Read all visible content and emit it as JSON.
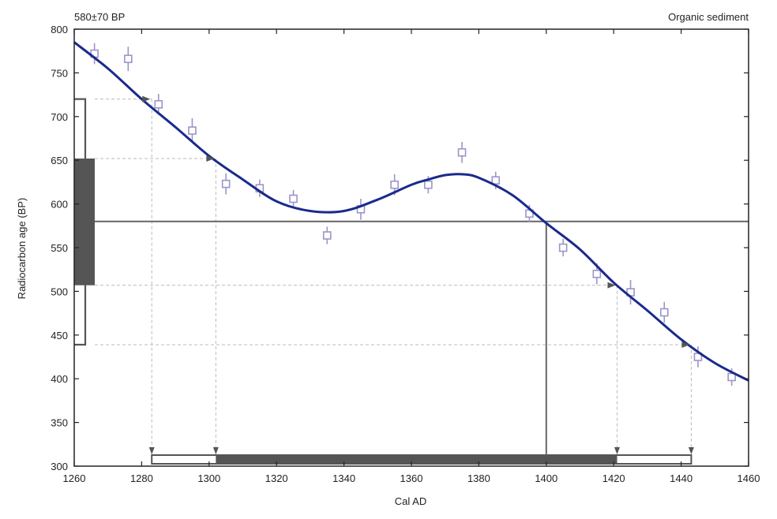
{
  "chart_data": {
    "type": "line",
    "title_left": "580±70 BP",
    "title_right": "Organic sediment",
    "xlabel": "Cal AD",
    "ylabel": "Radiocarbon age (BP)",
    "xlim": [
      1260,
      1460
    ],
    "ylim": [
      300,
      800
    ],
    "x_ticks": [
      1260,
      1280,
      1300,
      1320,
      1340,
      1360,
      1380,
      1400,
      1420,
      1440,
      1460
    ],
    "y_ticks": [
      300,
      350,
      400,
      450,
      500,
      550,
      600,
      650,
      700,
      750,
      800
    ],
    "grid": false,
    "colors": {
      "curve": "#1a2a8c",
      "points": "#9c95c9",
      "bars": "#555555",
      "arrows": "#555555",
      "dashed": "#bbbbbb"
    },
    "calibration_curve": {
      "x": [
        1260,
        1270,
        1280,
        1290,
        1300,
        1310,
        1320,
        1330,
        1340,
        1350,
        1360,
        1365,
        1370,
        1375,
        1380,
        1390,
        1400,
        1410,
        1420,
        1430,
        1440,
        1450,
        1460
      ],
      "y": [
        785,
        755,
        720,
        688,
        655,
        628,
        603,
        592,
        592,
        605,
        622,
        628,
        633,
        634,
        630,
        610,
        578,
        548,
        510,
        478,
        445,
        418,
        398
      ]
    },
    "data_points": {
      "x": [
        1266,
        1276,
        1285,
        1295,
        1305,
        1315,
        1325,
        1335,
        1345,
        1355,
        1365,
        1375,
        1385,
        1395,
        1405,
        1415,
        1425,
        1435,
        1445,
        1455
      ],
      "y": [
        772,
        766,
        714,
        684,
        623,
        618,
        606,
        564,
        594,
        622,
        622,
        659,
        627,
        589,
        550,
        520,
        499,
        476,
        425,
        402
      ],
      "err": [
        12,
        14,
        12,
        14,
        12,
        10,
        10,
        10,
        12,
        12,
        10,
        12,
        10,
        10,
        10,
        12,
        14,
        12,
        12,
        10
      ]
    },
    "measured_age": 580,
    "intercept_x": 1400,
    "bp_range_1sigma": [
      507,
      652
    ],
    "bp_range_2sigma": [
      439,
      720
    ],
    "cal_range_1sigma": [
      1302,
      1421
    ],
    "cal_range_2sigma": [
      1283,
      1443
    ],
    "arrow_ages": [
      720,
      652,
      507,
      439
    ]
  }
}
